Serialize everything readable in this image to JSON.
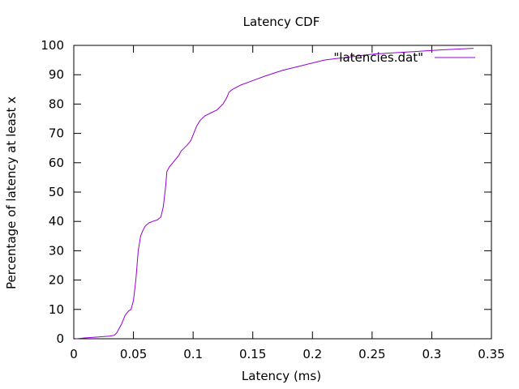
{
  "chart_data": {
    "type": "line",
    "title": "Latency CDF",
    "xlabel": "Latency (ms)",
    "ylabel": "Percentage of latency at least x",
    "xlim": [
      0,
      0.35
    ],
    "ylim": [
      0,
      100
    ],
    "xticks": [
      "0",
      "0.05",
      "0.1",
      "0.15",
      "0.2",
      "0.25",
      "0.3",
      "0.35"
    ],
    "yticks": [
      "0",
      "10",
      "20",
      "30",
      "40",
      "50",
      "60",
      "70",
      "80",
      "90",
      "100"
    ],
    "grid": false,
    "legend_position": "top-right",
    "series": [
      {
        "name": "\"latencies.dat\"",
        "color": "#9400d3",
        "x": [
          0.002,
          0.01,
          0.02,
          0.03,
          0.034,
          0.036,
          0.04,
          0.043,
          0.046,
          0.048,
          0.05,
          0.052,
          0.054,
          0.056,
          0.058,
          0.06,
          0.063,
          0.066,
          0.07,
          0.073,
          0.075,
          0.077,
          0.078,
          0.08,
          0.082,
          0.085,
          0.088,
          0.09,
          0.095,
          0.098,
          0.1,
          0.103,
          0.106,
          0.11,
          0.115,
          0.12,
          0.125,
          0.128,
          0.13,
          0.133,
          0.14,
          0.15,
          0.16,
          0.175,
          0.19,
          0.2,
          0.21,
          0.22,
          0.23,
          0.25,
          0.27,
          0.29,
          0.31,
          0.335
        ],
        "y": [
          0,
          0.3,
          0.6,
          0.9,
          1.2,
          2,
          5,
          8,
          9.5,
          10,
          13,
          20,
          30,
          35,
          37,
          38.5,
          39.5,
          40,
          40.5,
          41.5,
          45,
          52,
          57,
          58.5,
          59.5,
          61,
          62.5,
          64,
          66,
          67.5,
          69.5,
          72.5,
          74.5,
          76,
          77,
          78,
          80,
          82,
          84,
          85,
          86.5,
          88,
          89.5,
          91.5,
          93,
          94,
          95,
          95.5,
          96,
          97,
          97.5,
          98,
          98.5,
          99
        ]
      }
    ]
  }
}
